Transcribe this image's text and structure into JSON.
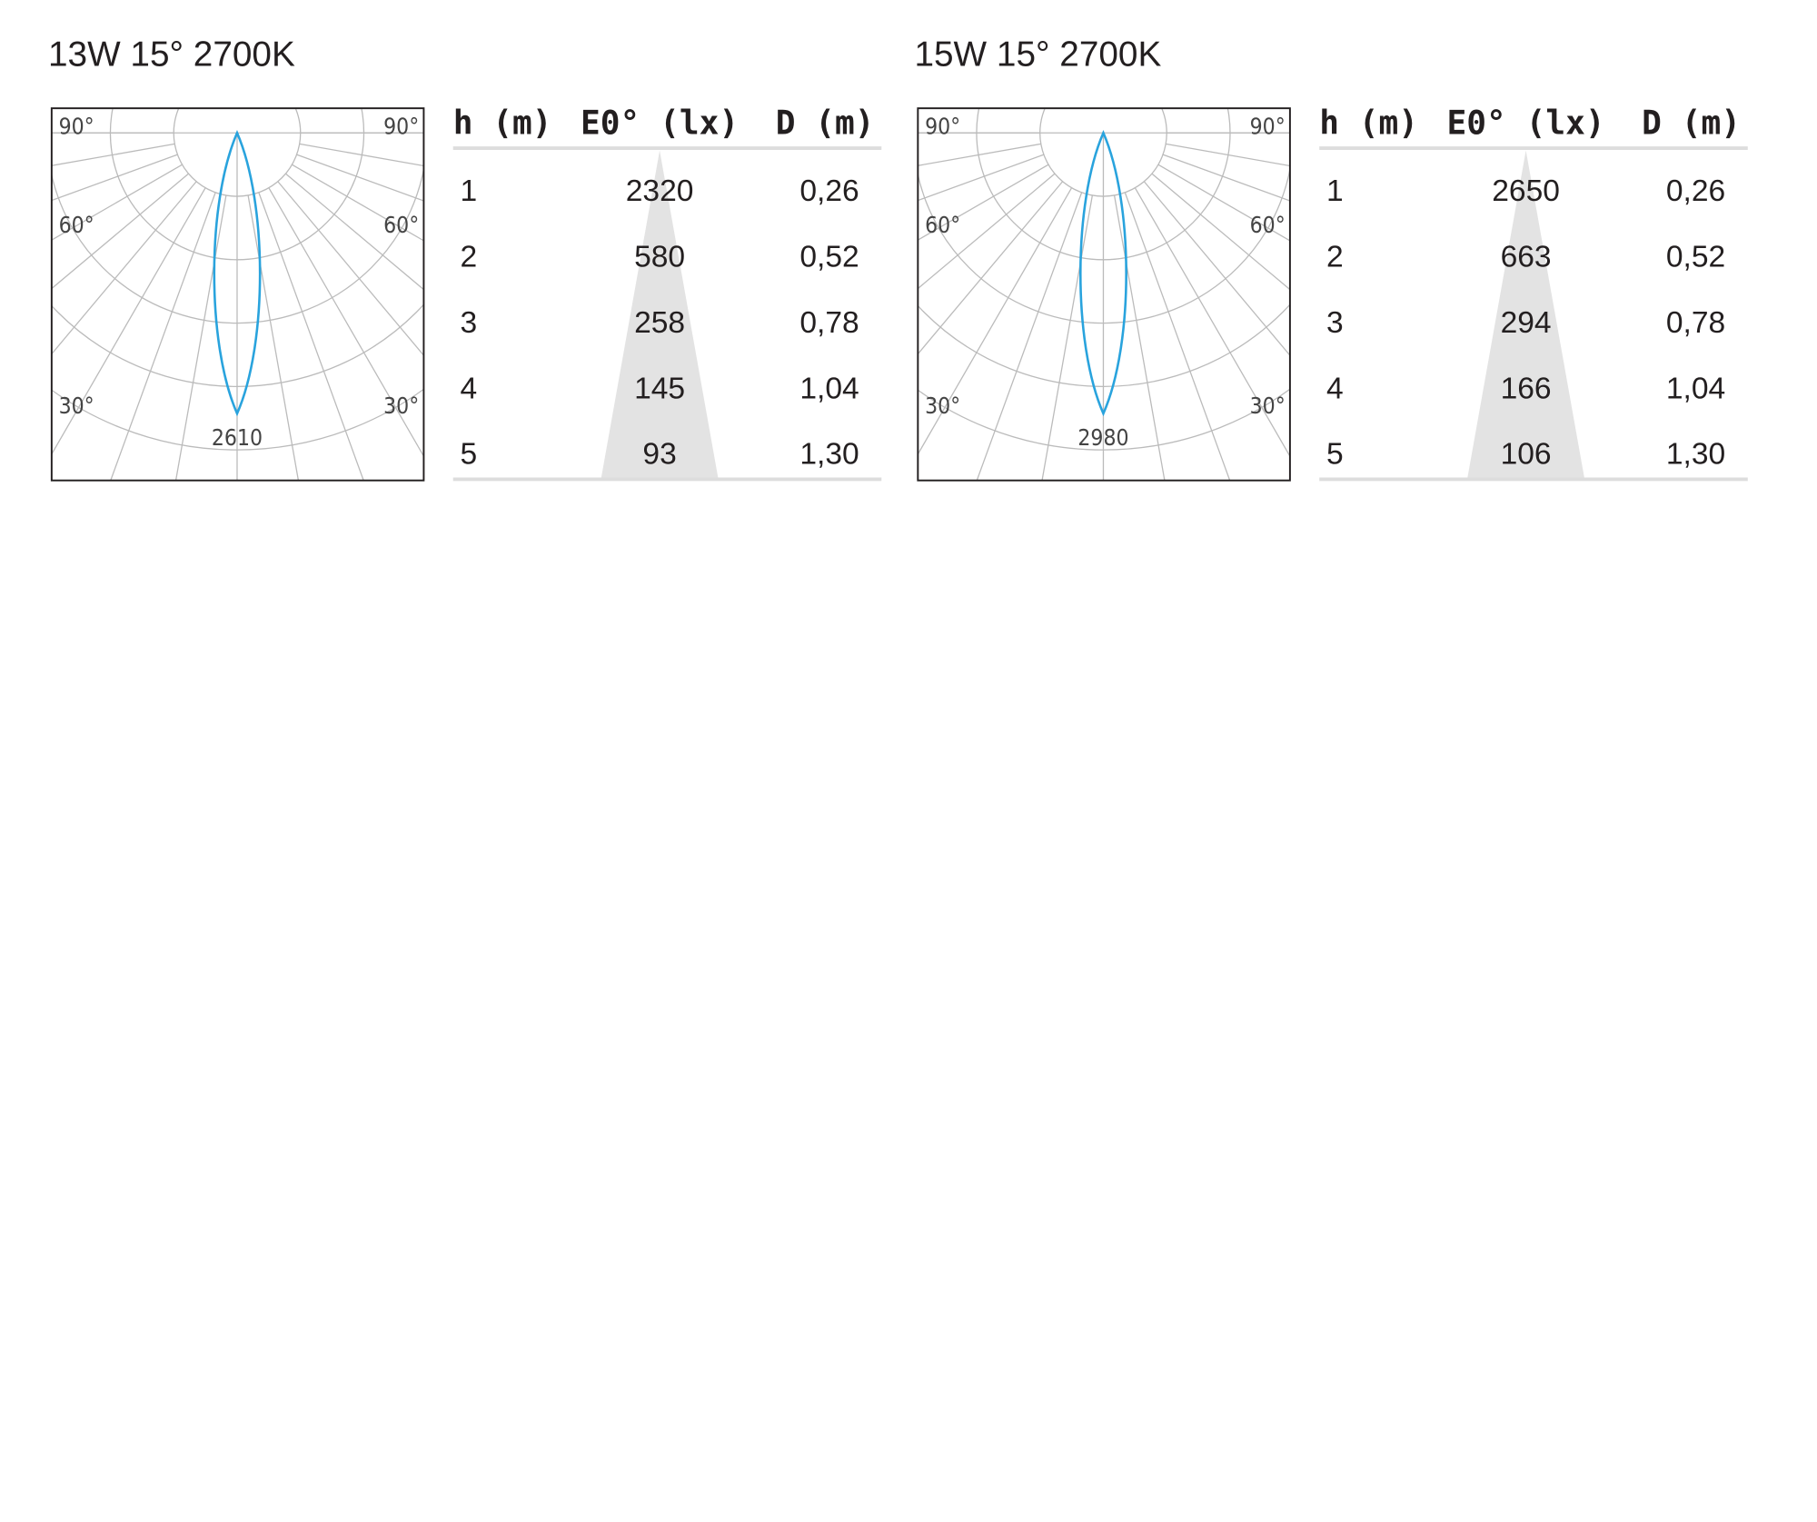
{
  "panels": [
    {
      "title": "13W 15°   2700K",
      "polar": {
        "angle_labels": [
          "90°",
          "60°",
          "30°"
        ],
        "peak_label": "2610"
      },
      "table": {
        "headers": [
          "h (m)",
          "E0° (lx)",
          "D (m)"
        ],
        "rows": [
          [
            "1",
            "2320",
            "0,26"
          ],
          [
            "2",
            "580",
            "0,52"
          ],
          [
            "3",
            "258",
            "0,78"
          ],
          [
            "4",
            "145",
            "1,04"
          ],
          [
            "5",
            "93",
            "1,30"
          ]
        ]
      }
    },
    {
      "title": "15W 15°   2700K",
      "polar": {
        "angle_labels": [
          "90°",
          "60°",
          "30°"
        ],
        "peak_label": "2980"
      },
      "table": {
        "headers": [
          "h (m)",
          "E0° (lx)",
          "D (m)"
        ],
        "rows": [
          [
            "1",
            "2650",
            "0,26"
          ],
          [
            "2",
            "663",
            "0,52"
          ],
          [
            "3",
            "294",
            "0,78"
          ],
          [
            "4",
            "166",
            "1,04"
          ],
          [
            "5",
            "106",
            "1,30"
          ]
        ]
      }
    }
  ]
}
